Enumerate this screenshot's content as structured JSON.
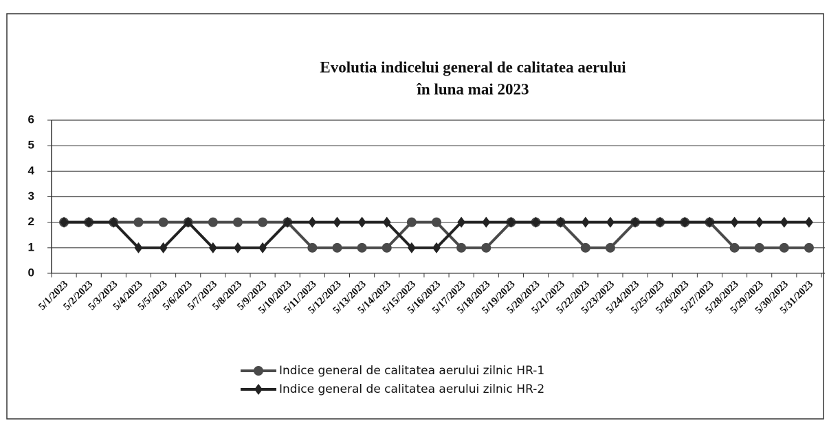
{
  "chart_data": {
    "type": "line",
    "title": [
      "Evolutia indicelui general de calitatea aerului",
      "în luna mai 2023"
    ],
    "categories": [
      "5/1/2023",
      "5/2/2023",
      "5/3/2023",
      "5/4/2023",
      "5/5/2023",
      "5/6/2023",
      "5/7/2023",
      "5/8/2023",
      "5/9/2023",
      "5/10/2023",
      "5/11/2023",
      "5/12/2023",
      "5/13/2023",
      "5/14/2023",
      "5/15/2023",
      "5/16/2023",
      "5/17/2023",
      "5/18/2023",
      "5/19/2023",
      "5/20/2023",
      "5/21/2023",
      "5/22/2023",
      "5/23/2023",
      "5/24/2023",
      "5/25/2023",
      "5/26/2023",
      "5/27/2023",
      "5/28/2023",
      "5/29/2023",
      "5/30/2023",
      "5/31/2023"
    ],
    "series": [
      {
        "name": "Indice general de calitatea aerului zilnic HR-1",
        "color": "#4a4a4a",
        "marker": "circle",
        "values": [
          2,
          2,
          2,
          2,
          2,
          2,
          2,
          2,
          2,
          2,
          1,
          1,
          1,
          1,
          2,
          2,
          1,
          1,
          2,
          2,
          2,
          1,
          1,
          2,
          2,
          2,
          2,
          1,
          1,
          1,
          1
        ]
      },
      {
        "name": "Indice general de calitatea aerului zilnic HR-2",
        "color": "#222222",
        "marker": "diamond",
        "values": [
          2,
          2,
          2,
          1,
          1,
          2,
          1,
          1,
          1,
          2,
          2,
          2,
          2,
          2,
          1,
          1,
          2,
          2,
          2,
          2,
          2,
          2,
          2,
          2,
          2,
          2,
          2,
          2,
          2,
          2,
          2
        ]
      }
    ],
    "ylim": [
      0,
      6
    ],
    "yticks": [
      0,
      1,
      2,
      3,
      4,
      5,
      6
    ],
    "grid": true,
    "legend": "bottom"
  }
}
